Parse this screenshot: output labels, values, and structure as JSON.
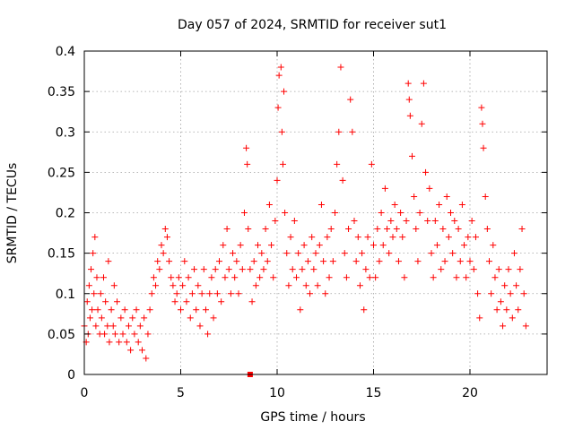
{
  "chart_data": {
    "type": "scatter",
    "title": "Day 057 of 2024, SRMTID for receiver sut1",
    "xlabel": "GPS time / hours",
    "ylabel": "SRMTID / TECUs",
    "xlim": [
      0,
      24
    ],
    "ylim": [
      0,
      0.4
    ],
    "xticks": [
      0,
      5,
      10,
      15,
      20
    ],
    "xtick_labels": [
      "0",
      "5",
      "10",
      "15",
      "20"
    ],
    "yticks": [
      0,
      0.05,
      0.1,
      0.15,
      0.2,
      0.25,
      0.3,
      0.35,
      0.4
    ],
    "ytick_labels": [
      "0",
      "0.05",
      "0.1",
      "0.15",
      "0.2",
      "0.25",
      "0.3",
      "0.35",
      "0.4"
    ],
    "grid": true,
    "marker": "plus",
    "color": "#ff0000",
    "series": [
      {
        "name": "SRMTID",
        "points": [
          [
            0.0,
            0.06
          ],
          [
            0.1,
            0.04
          ],
          [
            0.15,
            0.09
          ],
          [
            0.2,
            0.05
          ],
          [
            0.25,
            0.11
          ],
          [
            0.3,
            0.07
          ],
          [
            0.35,
            0.13
          ],
          [
            0.4,
            0.08
          ],
          [
            0.45,
            0.15
          ],
          [
            0.5,
            0.1
          ],
          [
            0.55,
            0.17
          ],
          [
            0.6,
            0.06
          ],
          [
            0.65,
            0.12
          ],
          [
            0.7,
            0.08
          ],
          [
            0.8,
            0.05
          ],
          [
            0.85,
            0.1
          ],
          [
            0.9,
            0.07
          ],
          [
            1.0,
            0.12
          ],
          [
            1.05,
            0.05
          ],
          [
            1.1,
            0.09
          ],
          [
            1.2,
            0.06
          ],
          [
            1.25,
            0.14
          ],
          [
            1.3,
            0.04
          ],
          [
            1.4,
            0.08
          ],
          [
            1.5,
            0.06
          ],
          [
            1.55,
            0.11
          ],
          [
            1.6,
            0.05
          ],
          [
            1.7,
            0.09
          ],
          [
            1.8,
            0.04
          ],
          [
            1.9,
            0.07
          ],
          [
            2.0,
            0.05
          ],
          [
            2.1,
            0.08
          ],
          [
            2.2,
            0.04
          ],
          [
            2.3,
            0.06
          ],
          [
            2.4,
            0.03
          ],
          [
            2.5,
            0.07
          ],
          [
            2.6,
            0.05
          ],
          [
            2.7,
            0.08
          ],
          [
            2.8,
            0.04
          ],
          [
            2.9,
            0.06
          ],
          [
            3.0,
            0.03
          ],
          [
            3.1,
            0.07
          ],
          [
            3.2,
            0.02
          ],
          [
            3.3,
            0.05
          ],
          [
            3.4,
            0.08
          ],
          [
            3.5,
            0.1
          ],
          [
            3.6,
            0.12
          ],
          [
            3.7,
            0.11
          ],
          [
            3.8,
            0.14
          ],
          [
            3.9,
            0.13
          ],
          [
            4.0,
            0.16
          ],
          [
            4.1,
            0.15
          ],
          [
            4.2,
            0.18
          ],
          [
            4.3,
            0.17
          ],
          [
            4.4,
            0.14
          ],
          [
            4.5,
            0.12
          ],
          [
            4.6,
            0.11
          ],
          [
            4.7,
            0.09
          ],
          [
            4.8,
            0.1
          ],
          [
            4.9,
            0.12
          ],
          [
            5.0,
            0.08
          ],
          [
            5.1,
            0.11
          ],
          [
            5.2,
            0.14
          ],
          [
            5.3,
            0.09
          ],
          [
            5.4,
            0.12
          ],
          [
            5.5,
            0.07
          ],
          [
            5.6,
            0.1
          ],
          [
            5.7,
            0.13
          ],
          [
            5.8,
            0.08
          ],
          [
            5.9,
            0.11
          ],
          [
            6.0,
            0.06
          ],
          [
            6.1,
            0.1
          ],
          [
            6.2,
            0.13
          ],
          [
            6.3,
            0.08
          ],
          [
            6.4,
            0.05
          ],
          [
            6.5,
            0.1
          ],
          [
            6.6,
            0.12
          ],
          [
            6.7,
            0.07
          ],
          [
            6.8,
            0.13
          ],
          [
            6.9,
            0.1
          ],
          [
            7.0,
            0.14
          ],
          [
            7.1,
            0.09
          ],
          [
            7.2,
            0.16
          ],
          [
            7.3,
            0.12
          ],
          [
            7.4,
            0.18
          ],
          [
            7.5,
            0.13
          ],
          [
            7.6,
            0.1
          ],
          [
            7.7,
            0.15
          ],
          [
            7.8,
            0.12
          ],
          [
            7.9,
            0.14
          ],
          [
            8.0,
            0.1
          ],
          [
            8.1,
            0.16
          ],
          [
            8.2,
            0.13
          ],
          [
            8.3,
            0.2
          ],
          [
            8.4,
            0.28
          ],
          [
            8.45,
            0.26
          ],
          [
            8.5,
            0.18
          ],
          [
            8.6,
            0.13
          ],
          [
            8.7,
            0.09
          ],
          [
            8.8,
            0.14
          ],
          [
            8.9,
            0.11
          ],
          [
            9.0,
            0.16
          ],
          [
            9.1,
            0.12
          ],
          [
            9.2,
            0.15
          ],
          [
            9.3,
            0.13
          ],
          [
            9.4,
            0.18
          ],
          [
            9.5,
            0.14
          ],
          [
            9.6,
            0.21
          ],
          [
            9.7,
            0.16
          ],
          [
            9.8,
            0.12
          ],
          [
            9.9,
            0.19
          ],
          [
            10.0,
            0.24
          ],
          [
            10.05,
            0.33
          ],
          [
            10.1,
            0.37
          ],
          [
            10.2,
            0.38
          ],
          [
            10.25,
            0.3
          ],
          [
            10.3,
            0.26
          ],
          [
            10.35,
            0.35
          ],
          [
            10.4,
            0.2
          ],
          [
            10.5,
            0.15
          ],
          [
            10.6,
            0.11
          ],
          [
            10.7,
            0.17
          ],
          [
            10.8,
            0.13
          ],
          [
            10.9,
            0.19
          ],
          [
            11.0,
            0.12
          ],
          [
            11.1,
            0.15
          ],
          [
            11.2,
            0.08
          ],
          [
            11.3,
            0.13
          ],
          [
            11.4,
            0.16
          ],
          [
            11.5,
            0.11
          ],
          [
            11.6,
            0.14
          ],
          [
            11.7,
            0.1
          ],
          [
            11.8,
            0.17
          ],
          [
            11.9,
            0.13
          ],
          [
            12.0,
            0.15
          ],
          [
            12.1,
            0.11
          ],
          [
            12.2,
            0.16
          ],
          [
            12.3,
            0.21
          ],
          [
            12.4,
            0.14
          ],
          [
            12.5,
            0.1
          ],
          [
            12.6,
            0.17
          ],
          [
            12.7,
            0.12
          ],
          [
            12.8,
            0.18
          ],
          [
            12.9,
            0.14
          ],
          [
            13.0,
            0.2
          ],
          [
            13.1,
            0.26
          ],
          [
            13.2,
            0.3
          ],
          [
            13.3,
            0.38
          ],
          [
            13.4,
            0.24
          ],
          [
            13.5,
            0.15
          ],
          [
            13.6,
            0.12
          ],
          [
            13.7,
            0.18
          ],
          [
            13.8,
            0.34
          ],
          [
            13.9,
            0.3
          ],
          [
            14.0,
            0.19
          ],
          [
            14.1,
            0.14
          ],
          [
            14.2,
            0.17
          ],
          [
            14.3,
            0.11
          ],
          [
            14.4,
            0.15
          ],
          [
            14.5,
            0.08
          ],
          [
            14.6,
            0.13
          ],
          [
            14.7,
            0.17
          ],
          [
            14.8,
            0.12
          ],
          [
            14.9,
            0.26
          ],
          [
            15.0,
            0.16
          ],
          [
            15.1,
            0.12
          ],
          [
            15.2,
            0.18
          ],
          [
            15.3,
            0.14
          ],
          [
            15.4,
            0.2
          ],
          [
            15.5,
            0.16
          ],
          [
            15.6,
            0.23
          ],
          [
            15.7,
            0.18
          ],
          [
            15.8,
            0.15
          ],
          [
            15.9,
            0.19
          ],
          [
            16.0,
            0.17
          ],
          [
            16.1,
            0.21
          ],
          [
            16.2,
            0.18
          ],
          [
            16.3,
            0.14
          ],
          [
            16.4,
            0.2
          ],
          [
            16.5,
            0.17
          ],
          [
            16.6,
            0.12
          ],
          [
            16.7,
            0.19
          ],
          [
            16.8,
            0.36
          ],
          [
            16.85,
            0.34
          ],
          [
            16.9,
            0.32
          ],
          [
            17.0,
            0.27
          ],
          [
            17.1,
            0.22
          ],
          [
            17.2,
            0.18
          ],
          [
            17.3,
            0.14
          ],
          [
            17.4,
            0.2
          ],
          [
            17.5,
            0.31
          ],
          [
            17.6,
            0.36
          ],
          [
            17.7,
            0.25
          ],
          [
            17.8,
            0.19
          ],
          [
            17.9,
            0.23
          ],
          [
            18.0,
            0.15
          ],
          [
            18.1,
            0.12
          ],
          [
            18.2,
            0.19
          ],
          [
            18.3,
            0.16
          ],
          [
            18.4,
            0.21
          ],
          [
            18.5,
            0.13
          ],
          [
            18.6,
            0.18
          ],
          [
            18.7,
            0.14
          ],
          [
            18.8,
            0.22
          ],
          [
            18.9,
            0.17
          ],
          [
            19.0,
            0.2
          ],
          [
            19.1,
            0.15
          ],
          [
            19.2,
            0.19
          ],
          [
            19.3,
            0.12
          ],
          [
            19.4,
            0.18
          ],
          [
            19.5,
            0.14
          ],
          [
            19.6,
            0.21
          ],
          [
            19.7,
            0.16
          ],
          [
            19.8,
            0.12
          ],
          [
            19.9,
            0.17
          ],
          [
            20.0,
            0.14
          ],
          [
            20.1,
            0.19
          ],
          [
            20.2,
            0.13
          ],
          [
            20.3,
            0.17
          ],
          [
            20.4,
            0.1
          ],
          [
            20.5,
            0.07
          ],
          [
            20.6,
            0.33
          ],
          [
            20.65,
            0.31
          ],
          [
            20.7,
            0.28
          ],
          [
            20.8,
            0.22
          ],
          [
            20.9,
            0.18
          ],
          [
            21.0,
            0.14
          ],
          [
            21.1,
            0.1
          ],
          [
            21.2,
            0.16
          ],
          [
            21.3,
            0.12
          ],
          [
            21.4,
            0.08
          ],
          [
            21.5,
            0.13
          ],
          [
            21.6,
            0.09
          ],
          [
            21.7,
            0.06
          ],
          [
            21.8,
            0.11
          ],
          [
            21.9,
            0.08
          ],
          [
            22.0,
            0.13
          ],
          [
            22.1,
            0.1
          ],
          [
            22.2,
            0.07
          ],
          [
            22.3,
            0.15
          ],
          [
            22.4,
            0.11
          ],
          [
            22.5,
            0.08
          ],
          [
            22.6,
            0.13
          ],
          [
            22.7,
            0.18
          ],
          [
            22.8,
            0.1
          ],
          [
            22.9,
            0.06
          ]
        ]
      }
    ],
    "baseline_marker": [
      8.6,
      0.0
    ]
  }
}
